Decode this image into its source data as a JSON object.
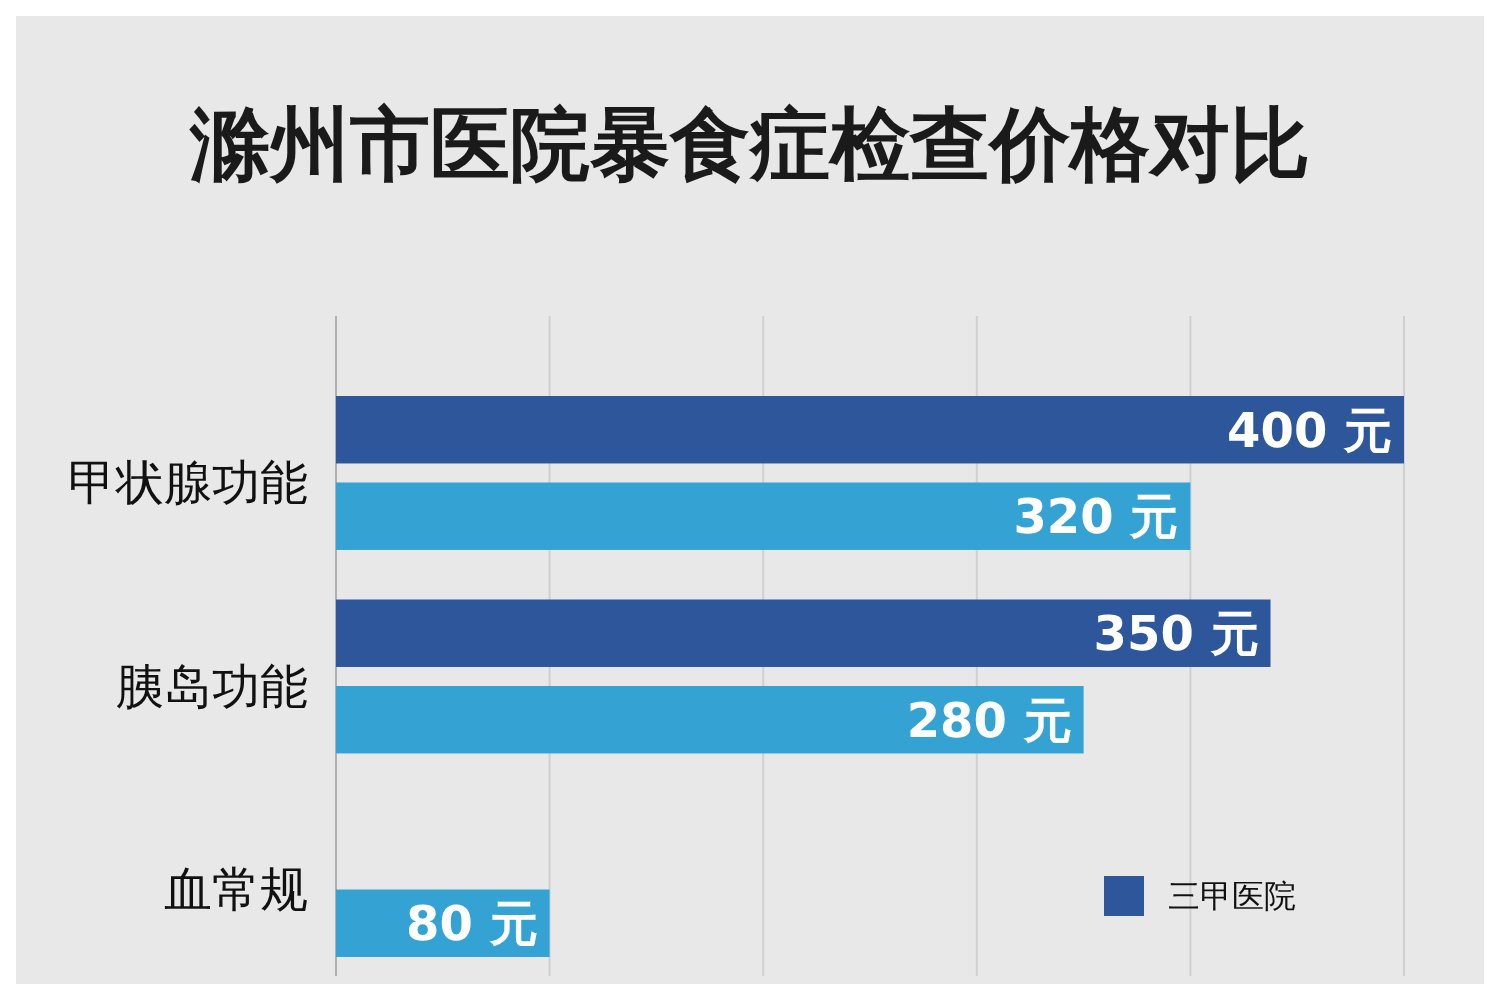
{
  "chart_data": {
    "type": "bar",
    "orientation": "horizontal",
    "title": "滁州市医院暴食症检查价格对比",
    "categories": [
      "甲状腺功能",
      "胰岛功能",
      "血常规"
    ],
    "series": [
      {
        "name": "三甲医院",
        "color": "#2d569b",
        "values": [
          400,
          350,
          null
        ],
        "value_labels": [
          "400 元",
          "350 元",
          null
        ]
      },
      {
        "color": "#34a3d4",
        "values": [
          320,
          280,
          80
        ],
        "value_labels": [
          "320 元",
          "280 元",
          "80 元"
        ]
      }
    ],
    "xlim": [
      0,
      400
    ],
    "xticks": [
      {
        "value": 0,
        "label": null
      },
      {
        "value": 80,
        "label": null
      },
      {
        "value": 160,
        "label": null
      },
      {
        "value": 240,
        "label": null
      },
      {
        "value": 320,
        "label": null
      },
      {
        "value": 400,
        "label": null
      }
    ],
    "tick_labels": "y",
    "grid": "x",
    "legend": "bottom right"
  }
}
